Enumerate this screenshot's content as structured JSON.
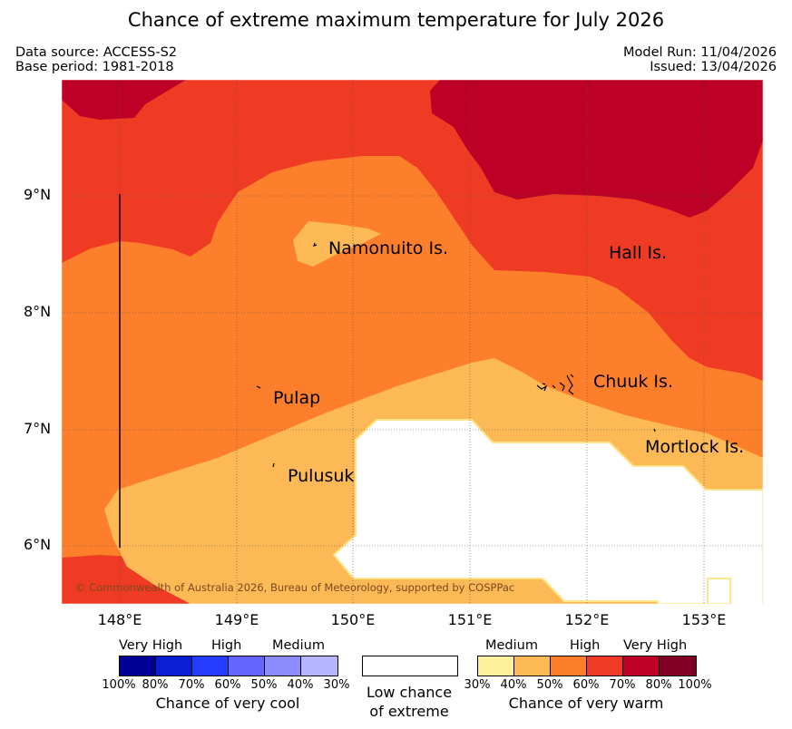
{
  "title": "Chance of extreme maximum temperature for July 2026",
  "meta": {
    "data_source": "Data source: ACCESS-S2",
    "base_period": "Base period: 1981-2018",
    "model_run": "Model Run: 11/04/2026",
    "issued": "Issued: 13/04/2026"
  },
  "map": {
    "lat_ticks": [
      "9°N",
      "8°N",
      "7°N",
      "6°N"
    ],
    "lon_ticks": [
      "148°E",
      "149°E",
      "150°E",
      "151°E",
      "152°E",
      "153°E"
    ],
    "places": {
      "namonuito": "Namonuito Is.",
      "hall": "Hall Is.",
      "pulap": "Pulap",
      "chuuk": "Chuuk Is.",
      "mortlock": "Mortlock Is.",
      "pulusuk": "Pulusuk"
    },
    "copyright": "© Commonwealth of Australia 2026, Bureau of Meteorology, supported by COSPPac"
  },
  "legend": {
    "cool": {
      "levels": [
        "Very High",
        "High",
        "Medium"
      ],
      "ticks": [
        "100%",
        "80%",
        "70%",
        "60%",
        "50%",
        "40%",
        "30%"
      ],
      "colors": [
        "#000096",
        "#0a1fd2",
        "#243cff",
        "#6464ff",
        "#8c8cff",
        "#b4b4ff"
      ],
      "title": "Chance of very cool"
    },
    "low": {
      "line1": "Low chance",
      "line2": "of extreme"
    },
    "warm": {
      "levels": [
        "Medium",
        "High",
        "Very High"
      ],
      "ticks": [
        "30%",
        "40%",
        "50%",
        "60%",
        "70%",
        "80%",
        "100%"
      ],
      "colors": [
        "#fff09c",
        "#fdb955",
        "#fd7f2c",
        "#ef3b23",
        "#bd0026",
        "#800026"
      ],
      "title": "Chance of very warm"
    }
  }
}
